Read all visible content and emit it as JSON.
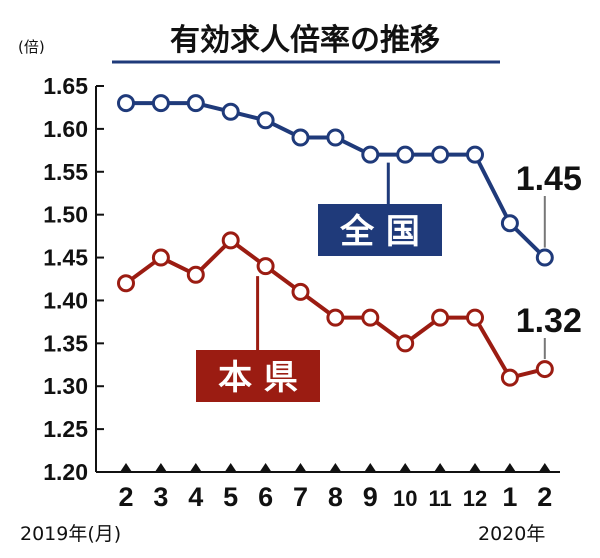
{
  "colors": {
    "series_national": "#1f3a7a",
    "series_prefecture": "#9b1c12",
    "axis": "#111111"
  },
  "chart_data": {
    "type": "line",
    "title": "有効求人倍率の推移",
    "y_unit": "(倍)",
    "ylim": [
      1.2,
      1.65
    ],
    "y_ticks": [
      "1.65",
      "1.60",
      "1.55",
      "1.50",
      "1.45",
      "1.40",
      "1.35",
      "1.30",
      "1.25",
      "1.20"
    ],
    "categories": [
      "2",
      "3",
      "4",
      "5",
      "6",
      "7",
      "8",
      "9",
      "10",
      "11",
      "12",
      "1",
      "2"
    ],
    "x_start_label": "2019年(月)",
    "x_end_label": "2020年",
    "grid": false,
    "series": [
      {
        "name": "全 国",
        "color": "#1f3a7a",
        "values": [
          1.63,
          1.63,
          1.63,
          1.62,
          1.61,
          1.59,
          1.59,
          1.57,
          1.57,
          1.57,
          1.57,
          1.49,
          1.45
        ],
        "end_label": "1.45"
      },
      {
        "name": "本 県",
        "color": "#9b1c12",
        "values": [
          1.42,
          1.45,
          1.43,
          1.47,
          1.44,
          1.41,
          1.38,
          1.38,
          1.35,
          1.38,
          1.38,
          1.31,
          1.32
        ],
        "end_label": "1.32"
      }
    ]
  }
}
